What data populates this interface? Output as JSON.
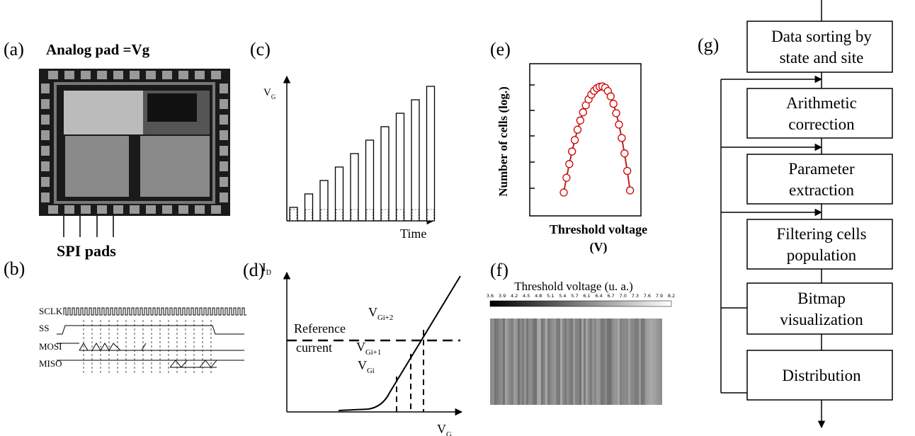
{
  "panels": {
    "a": {
      "label": "(a)",
      "analog_pad": "Analog pad =Vg",
      "spi_pads": "SPI pads"
    },
    "b": {
      "label": "(b)",
      "signals": [
        "SCLK",
        "SS",
        "MOSI",
        "MISO"
      ]
    },
    "c": {
      "label": "(c)",
      "y_axis": {
        "main": "V",
        "sub": "G"
      },
      "x_axis": "Time"
    },
    "d": {
      "label": "(d)",
      "y_axis": {
        "main": "I",
        "sub": "D"
      },
      "x_axis": {
        "main": "V",
        "sub": "G"
      },
      "reference": [
        "Reference",
        "current"
      ],
      "levels": [
        {
          "main": "V",
          "sub": "Gi+2"
        },
        {
          "main": "V",
          "sub": "Gi+1"
        },
        {
          "main": "V",
          "sub": "Gi"
        }
      ]
    },
    "e": {
      "label": "(e)",
      "y_axis": "Number of cells (log.)",
      "x_axis": [
        "Threshold voltage",
        "(V)"
      ]
    },
    "f": {
      "label": "(f)",
      "title": "Threshold voltage (u. a.)",
      "scale": [
        "3.6",
        "3.9",
        "4.2",
        "4.5",
        "4.8",
        "5.1",
        "5.4",
        "5.7",
        "6.1",
        "6.4",
        "6.7",
        "7.0",
        "7.3",
        "7.6",
        "7.9",
        "8.2"
      ]
    },
    "g": {
      "label": "(g)",
      "steps": [
        [
          "Data sorting by",
          "state and site"
        ],
        [
          "Arithmetic",
          "correction"
        ],
        [
          "Parameter",
          "extraction"
        ],
        [
          "Filtering cells",
          "population"
        ],
        [
          "Bitmap",
          "visualization"
        ],
        [
          "Distribution"
        ]
      ]
    }
  }
}
